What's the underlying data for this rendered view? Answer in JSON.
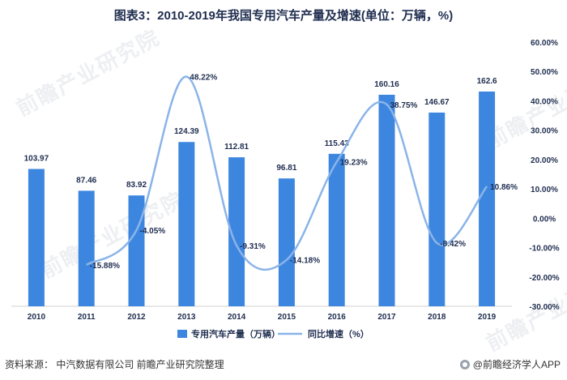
{
  "title": "图表3：2010-2019年我国专用汽车产量及增速(单位：万辆，%)",
  "footer": {
    "source": "资料来源： 中汽数据有限公司 前瞻产业研究院整理",
    "brand": "@前瞻经济学人APP",
    "brand_icon": "qianzhan-logo-icon"
  },
  "watermark": "前瞻产业研究院",
  "chart_data": {
    "type": "bar",
    "categories": [
      "2010",
      "2011",
      "2012",
      "2013",
      "2014",
      "2015",
      "2016",
      "2017",
      "2018",
      "2019"
    ],
    "series": [
      {
        "name": "专用汽车产量（万辆）",
        "type": "bar",
        "axis": "left",
        "values": [
          103.97,
          87.46,
          83.92,
          124.39,
          112.81,
          96.81,
          115.43,
          160.16,
          146.67,
          162.6
        ],
        "labels": [
          "103.97",
          "87.46",
          "83.92",
          "124.39",
          "112.81",
          "96.81",
          "115.43",
          "160.16",
          "146.67",
          "162.6"
        ],
        "color": "#3d86e0"
      },
      {
        "name": "同比增速（%）",
        "type": "line",
        "axis": "right",
        "values": [
          null,
          -15.88,
          -4.05,
          48.22,
          -9.31,
          -14.18,
          19.23,
          38.75,
          -8.42,
          10.86
        ],
        "labels": [
          "",
          "-15.88%",
          "-4.05%",
          "48.22%",
          "-9.31%",
          "-14.18%",
          "19.23%",
          "38.75%",
          "-8.42%",
          "10.86%"
        ],
        "color": "#8ab4e8"
      }
    ],
    "left_axis": {
      "min": 0,
      "max": 200,
      "visible": false
    },
    "right_axis": {
      "min": -30,
      "max": 60,
      "step": 10,
      "tick_labels": [
        "-30.00%",
        "-20.00%",
        "-10.00%",
        "0.00%",
        "10.00%",
        "20.00%",
        "30.00%",
        "40.00%",
        "50.00%",
        "60.00%"
      ]
    },
    "grid": false,
    "legend_position": "bottom"
  }
}
